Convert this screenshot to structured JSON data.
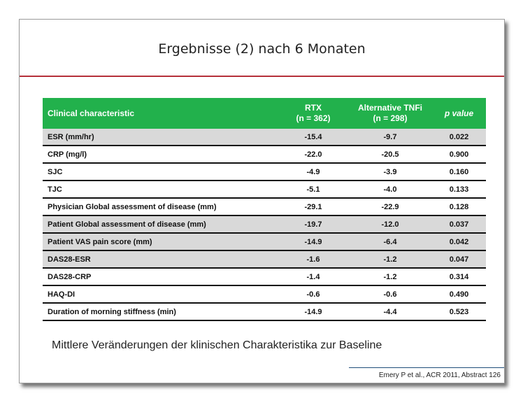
{
  "slide": {
    "title": "Ergebnisse (2) nach 6 Monaten",
    "caption": "Mittlere Veränderungen der klinischen Charakteristika zur Baseline",
    "reference": "Emery P et al., ACR 2011, Abstract 126",
    "colors": {
      "header_green": "#22b14c",
      "title_rule": "#b5303a",
      "row_shade": "#d9d9d9"
    }
  },
  "table": {
    "headers": [
      {
        "line1": "Clinical characteristic",
        "line2": ""
      },
      {
        "line1": "RTX",
        "line2": "(n = 362)"
      },
      {
        "line1": "Alternative TNFi",
        "line2": "(n = 298)"
      },
      {
        "line1": "p value",
        "line2": ""
      }
    ],
    "rows": [
      {
        "label": "ESR (mm/hr)",
        "rtx": "-15.4",
        "tnfi": "-9.7",
        "p": "0.022",
        "shaded": true
      },
      {
        "label": "CRP (mg/l)",
        "rtx": "-22.0",
        "tnfi": "-20.5",
        "p": "0.900",
        "shaded": false
      },
      {
        "label": "SJC",
        "rtx": "-4.9",
        "tnfi": "-3.9",
        "p": "0.160",
        "shaded": false
      },
      {
        "label": "TJC",
        "rtx": "-5.1",
        "tnfi": "-4.0",
        "p": "0.133",
        "shaded": false
      },
      {
        "label": "Physician Global assessment of disease (mm)",
        "rtx": "-29.1",
        "tnfi": "-22.9",
        "p": "0.128",
        "shaded": false
      },
      {
        "label": "Patient Global assessment of disease (mm)",
        "rtx": "-19.7",
        "tnfi": "-12.0",
        "p": "0.037",
        "shaded": true
      },
      {
        "label": "Patient VAS pain score (mm)",
        "rtx": "-14.9",
        "tnfi": "-6.4",
        "p": "0.042",
        "shaded": true
      },
      {
        "label": "DAS28-ESR",
        "rtx": "-1.6",
        "tnfi": "-1.2",
        "p": "0.047",
        "shaded": true
      },
      {
        "label": "DAS28-CRP",
        "rtx": "-1.4",
        "tnfi": "-1.2",
        "p": "0.314",
        "shaded": false
      },
      {
        "label": "HAQ-DI",
        "rtx": "-0.6",
        "tnfi": "-0.6",
        "p": "0.490",
        "shaded": false
      },
      {
        "label": "Duration of morning stiffness (min)",
        "rtx": "-14.9",
        "tnfi": "-4.4",
        "p": "0.523",
        "shaded": false
      }
    ]
  }
}
